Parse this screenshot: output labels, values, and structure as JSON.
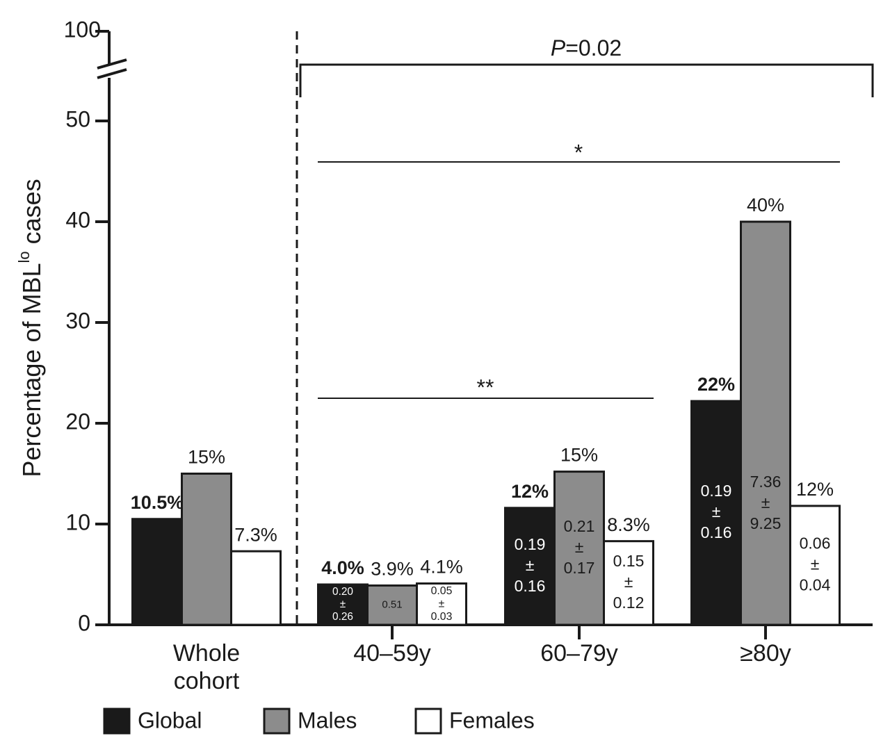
{
  "chart_data": {
    "type": "bar",
    "y_label": [
      "Percentage of MBL",
      "lo",
      " cases"
    ],
    "categories": [
      [
        "Whole",
        "cohort"
      ],
      [
        "40–59y"
      ],
      [
        "60–79y"
      ],
      [
        "≥80y"
      ]
    ],
    "series": [
      {
        "name": "Global",
        "color": "#1a1a1a",
        "label_weight": "bold",
        "inner_color": "#ffffff",
        "values": [
          10.5,
          4.0,
          11.6,
          22.2
        ],
        "value_labels": [
          "10.5%",
          "4.0%",
          "12%",
          "22%"
        ],
        "inner_labels": [
          null,
          [
            "0.20",
            "±",
            "0.26"
          ],
          [
            "0.19",
            "±",
            "0.16"
          ],
          [
            "0.19",
            "±",
            "0.16"
          ]
        ]
      },
      {
        "name": "Males",
        "color": "#8c8c8c",
        "label_weight": "normal",
        "inner_color": "#1a1a1a",
        "values": [
          15,
          3.9,
          15.2,
          40
        ],
        "value_labels": [
          "15%",
          "3.9%",
          "15%",
          "40%"
        ],
        "inner_labels": [
          null,
          [
            "0.51"
          ],
          [
            "0.21",
            "±",
            "0.17"
          ],
          [
            "7.36",
            "±",
            "9.25"
          ]
        ]
      },
      {
        "name": "Females",
        "color": "#ffffff",
        "label_weight": "normal",
        "inner_color": "#1a1a1a",
        "values": [
          7.3,
          4.1,
          8.3,
          11.8
        ],
        "value_labels": [
          "7.3%",
          "4.1%",
          "8.3%",
          "12%"
        ],
        "inner_labels": [
          null,
          [
            "0.05",
            "±",
            "0.03"
          ],
          [
            "0.15",
            "±",
            "0.12"
          ],
          [
            "0.06",
            "±",
            "0.04"
          ]
        ]
      }
    ],
    "ylim": [
      0,
      53
    ],
    "yticks": [
      0,
      10,
      20,
      30,
      40,
      50
    ],
    "break_tick": 100,
    "annotations": [
      [
        "P",
        "=0.02"
      ],
      [
        "*"
      ],
      [
        "**"
      ]
    ]
  }
}
